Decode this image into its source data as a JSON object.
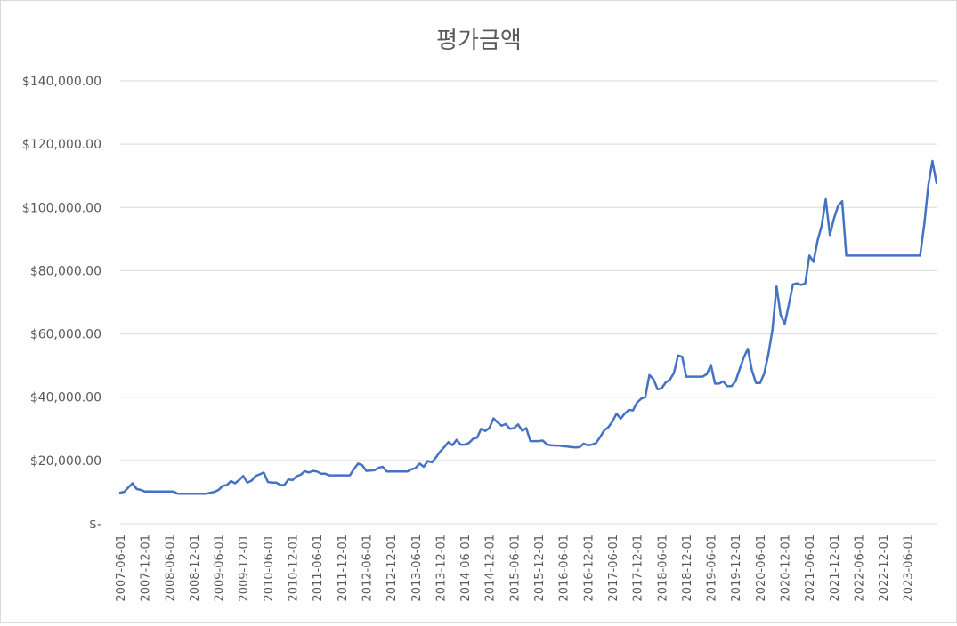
{
  "chart_data": {
    "type": "line",
    "title": "평가금액",
    "xlabel": "",
    "ylabel": "",
    "ylim": [
      0,
      140000
    ],
    "y_ticks": [
      0,
      20000,
      40000,
      60000,
      80000,
      100000,
      120000,
      140000
    ],
    "y_tick_labels": [
      "$-",
      "$20,000.00",
      "$40,000.00",
      "$60,000.00",
      "$80,000.00",
      "$100,000.00",
      "$120,000.00",
      "$140,000.00"
    ],
    "x_tick_labels": [
      "2007-06-01",
      "2007-12-01",
      "2008-06-01",
      "2008-12-01",
      "2009-06-01",
      "2009-12-01",
      "2010-06-01",
      "2010-12-01",
      "2011-06-01",
      "2011-12-01",
      "2012-06-01",
      "2012-12-01",
      "2013-06-01",
      "2013-12-01",
      "2014-06-01",
      "2014-12-01",
      "2015-06-01",
      "2015-12-01",
      "2016-06-01",
      "2016-12-01",
      "2017-06-01",
      "2017-12-01",
      "2018-06-01",
      "2018-12-01",
      "2019-06-01",
      "2019-12-01",
      "2020-06-01",
      "2020-12-01",
      "2021-06-01",
      "2021-12-01",
      "2022-06-01",
      "2022-12-01",
      "2023-06-01"
    ],
    "grid": true,
    "legend": "none",
    "color": "#4472C4",
    "series": [
      {
        "points": [
          [
            "2007-06-01",
            9800
          ],
          [
            "2007-07-01",
            10100
          ],
          [
            "2007-08-01",
            11500
          ],
          [
            "2007-09-01",
            12800
          ],
          [
            "2007-10-01",
            11000
          ],
          [
            "2007-11-01",
            10700
          ],
          [
            "2007-12-01",
            10200
          ],
          [
            "2008-01-01",
            10200
          ],
          [
            "2008-02-01",
            10200
          ],
          [
            "2008-03-01",
            10200
          ],
          [
            "2008-04-01",
            10200
          ],
          [
            "2008-05-01",
            10200
          ],
          [
            "2008-06-01",
            10200
          ],
          [
            "2008-07-01",
            10200
          ],
          [
            "2008-08-01",
            9500
          ],
          [
            "2008-09-01",
            9500
          ],
          [
            "2008-10-01",
            9500
          ],
          [
            "2008-11-01",
            9500
          ],
          [
            "2008-12-01",
            9500
          ],
          [
            "2009-01-01",
            9500
          ],
          [
            "2009-02-01",
            9500
          ],
          [
            "2009-03-01",
            9500
          ],
          [
            "2009-04-01",
            9800
          ],
          [
            "2009-05-01",
            10100
          ],
          [
            "2009-06-01",
            10700
          ],
          [
            "2009-07-01",
            12000
          ],
          [
            "2009-08-01",
            12200
          ],
          [
            "2009-09-01",
            13500
          ],
          [
            "2009-10-01",
            12800
          ],
          [
            "2009-11-01",
            13800
          ],
          [
            "2009-12-01",
            15100
          ],
          [
            "2010-01-01",
            13000
          ],
          [
            "2010-02-01",
            13600
          ],
          [
            "2010-03-01",
            15100
          ],
          [
            "2010-04-01",
            15600
          ],
          [
            "2010-05-01",
            16200
          ],
          [
            "2010-06-01",
            13200
          ],
          [
            "2010-07-01",
            13000
          ],
          [
            "2010-08-01",
            13000
          ],
          [
            "2010-09-01",
            12300
          ],
          [
            "2010-10-01",
            12200
          ],
          [
            "2010-11-01",
            14000
          ],
          [
            "2010-12-01",
            13800
          ],
          [
            "2011-01-01",
            15000
          ],
          [
            "2011-02-01",
            15500
          ],
          [
            "2011-03-01",
            16600
          ],
          [
            "2011-04-01",
            16200
          ],
          [
            "2011-05-01",
            16700
          ],
          [
            "2011-06-01",
            16500
          ],
          [
            "2011-07-01",
            15800
          ],
          [
            "2011-08-01",
            15800
          ],
          [
            "2011-09-01",
            15300
          ],
          [
            "2011-10-01",
            15300
          ],
          [
            "2011-11-01",
            15300
          ],
          [
            "2011-12-01",
            15300
          ],
          [
            "2012-01-01",
            15300
          ],
          [
            "2012-02-01",
            15300
          ],
          [
            "2012-03-01",
            17300
          ],
          [
            "2012-04-01",
            19000
          ],
          [
            "2012-05-01",
            18500
          ],
          [
            "2012-06-01",
            16700
          ],
          [
            "2012-07-01",
            16800
          ],
          [
            "2012-08-01",
            16900
          ],
          [
            "2012-09-01",
            17700
          ],
          [
            "2012-10-01",
            18000
          ],
          [
            "2012-11-01",
            16500
          ],
          [
            "2012-12-01",
            16500
          ],
          [
            "2013-01-01",
            16500
          ],
          [
            "2013-02-01",
            16500
          ],
          [
            "2013-03-01",
            16500
          ],
          [
            "2013-04-01",
            16500
          ],
          [
            "2013-05-01",
            17200
          ],
          [
            "2013-06-01",
            17600
          ],
          [
            "2013-07-01",
            19000
          ],
          [
            "2013-08-01",
            18000
          ],
          [
            "2013-09-01",
            19800
          ],
          [
            "2013-10-01",
            19400
          ],
          [
            "2013-11-01",
            21000
          ],
          [
            "2013-12-01",
            22800
          ],
          [
            "2014-01-01",
            24200
          ],
          [
            "2014-02-01",
            25800
          ],
          [
            "2014-03-01",
            24800
          ],
          [
            "2014-04-01",
            26500
          ],
          [
            "2014-05-01",
            25000
          ],
          [
            "2014-06-01",
            25000
          ],
          [
            "2014-07-01",
            25500
          ],
          [
            "2014-08-01",
            26800
          ],
          [
            "2014-09-01",
            27200
          ],
          [
            "2014-10-01",
            30000
          ],
          [
            "2014-11-01",
            29300
          ],
          [
            "2014-12-01",
            30300
          ],
          [
            "2015-01-01",
            33300
          ],
          [
            "2015-02-01",
            32000
          ],
          [
            "2015-03-01",
            31000
          ],
          [
            "2015-04-01",
            31500
          ],
          [
            "2015-05-01",
            30000
          ],
          [
            "2015-06-01",
            30200
          ],
          [
            "2015-07-01",
            31400
          ],
          [
            "2015-08-01",
            29400
          ],
          [
            "2015-09-01",
            30200
          ],
          [
            "2015-10-01",
            26100
          ],
          [
            "2015-11-01",
            26100
          ],
          [
            "2015-12-01",
            26100
          ],
          [
            "2016-01-01",
            26300
          ],
          [
            "2016-02-01",
            25100
          ],
          [
            "2016-03-01",
            24800
          ],
          [
            "2016-04-01",
            24700
          ],
          [
            "2016-05-01",
            24700
          ],
          [
            "2016-06-01",
            24500
          ],
          [
            "2016-07-01",
            24400
          ],
          [
            "2016-08-01",
            24200
          ],
          [
            "2016-09-01",
            24100
          ],
          [
            "2016-10-01",
            24200
          ],
          [
            "2016-11-01",
            25300
          ],
          [
            "2016-12-01",
            24800
          ],
          [
            "2017-01-01",
            25000
          ],
          [
            "2017-02-01",
            25500
          ],
          [
            "2017-03-01",
            27400
          ],
          [
            "2017-04-01",
            29500
          ],
          [
            "2017-05-01",
            30500
          ],
          [
            "2017-06-01",
            32300
          ],
          [
            "2017-07-01",
            34800
          ],
          [
            "2017-08-01",
            33200
          ],
          [
            "2017-09-01",
            34800
          ],
          [
            "2017-10-01",
            36000
          ],
          [
            "2017-11-01",
            35800
          ],
          [
            "2017-12-01",
            38300
          ],
          [
            "2018-01-01",
            39500
          ],
          [
            "2018-02-01",
            40000
          ],
          [
            "2018-03-01",
            47000
          ],
          [
            "2018-04-01",
            45700
          ],
          [
            "2018-05-01",
            42500
          ],
          [
            "2018-06-01",
            42800
          ],
          [
            "2018-07-01",
            44700
          ],
          [
            "2018-08-01",
            45500
          ],
          [
            "2018-09-01",
            47700
          ],
          [
            "2018-10-01",
            53200
          ],
          [
            "2018-11-01",
            52800
          ],
          [
            "2018-12-01",
            46500
          ],
          [
            "2019-01-01",
            46500
          ],
          [
            "2019-02-01",
            46500
          ],
          [
            "2019-03-01",
            46500
          ],
          [
            "2019-04-01",
            46500
          ],
          [
            "2019-05-01",
            47300
          ],
          [
            "2019-06-01",
            50200
          ],
          [
            "2019-07-01",
            44300
          ],
          [
            "2019-08-01",
            44300
          ],
          [
            "2019-09-01",
            45000
          ],
          [
            "2019-10-01",
            43500
          ],
          [
            "2019-11-01",
            43500
          ],
          [
            "2019-12-01",
            45000
          ],
          [
            "2020-01-01",
            48800
          ],
          [
            "2020-02-01",
            52500
          ],
          [
            "2020-03-01",
            55300
          ],
          [
            "2020-04-01",
            48500
          ],
          [
            "2020-05-01",
            44500
          ],
          [
            "2020-06-01",
            44500
          ],
          [
            "2020-07-01",
            47500
          ],
          [
            "2020-08-01",
            53500
          ],
          [
            "2020-09-01",
            61300
          ],
          [
            "2020-10-01",
            75000
          ],
          [
            "2020-11-01",
            66000
          ],
          [
            "2020-12-01",
            63200
          ],
          [
            "2021-01-01",
            69300
          ],
          [
            "2021-02-01",
            75700
          ],
          [
            "2021-03-01",
            76000
          ],
          [
            "2021-04-01",
            75500
          ],
          [
            "2021-05-01",
            76000
          ],
          [
            "2021-06-01",
            84800
          ],
          [
            "2021-07-01",
            82800
          ],
          [
            "2021-08-01",
            89500
          ],
          [
            "2021-09-01",
            94200
          ],
          [
            "2021-10-01",
            102600
          ],
          [
            "2021-11-01",
            91300
          ],
          [
            "2021-12-01",
            96500
          ],
          [
            "2022-01-01",
            100500
          ],
          [
            "2022-02-01",
            102000
          ],
          [
            "2022-03-01",
            84800
          ],
          [
            "2022-04-01",
            84800
          ],
          [
            "2022-05-01",
            84800
          ],
          [
            "2022-06-01",
            84800
          ],
          [
            "2022-07-01",
            84800
          ],
          [
            "2022-08-01",
            84800
          ],
          [
            "2022-09-01",
            84800
          ],
          [
            "2022-10-01",
            84800
          ],
          [
            "2022-11-01",
            84800
          ],
          [
            "2022-12-01",
            84800
          ],
          [
            "2023-01-01",
            84800
          ],
          [
            "2023-02-01",
            84800
          ],
          [
            "2023-03-01",
            84800
          ],
          [
            "2023-04-01",
            84800
          ],
          [
            "2023-05-01",
            84800
          ],
          [
            "2023-06-01",
            84800
          ],
          [
            "2023-07-01",
            84800
          ],
          [
            "2023-08-01",
            84800
          ],
          [
            "2023-09-01",
            84800
          ],
          [
            "2023-10-01",
            94500
          ],
          [
            "2023-11-01",
            107000
          ],
          [
            "2023-12-01",
            114700
          ],
          [
            "2024-01-01",
            107700
          ]
        ]
      }
    ]
  }
}
